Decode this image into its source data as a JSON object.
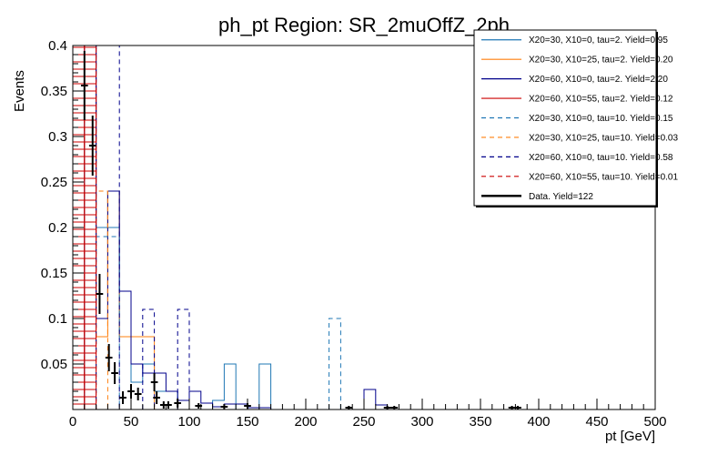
{
  "chart_data": {
    "type": "histogram",
    "title": "ph_pt Region: SR_2muOffZ_2ph",
    "xlabel": "pt [GeV]",
    "ylabel": "Events",
    "xlim": [
      0,
      500
    ],
    "ylim": [
      0,
      0.4
    ],
    "xticks": [
      "0",
      "50",
      "100",
      "150",
      "200",
      "250",
      "300",
      "350",
      "400",
      "450",
      "500"
    ],
    "yticks": [
      "0.05",
      "0.1",
      "0.15",
      "0.2",
      "0.25",
      "0.3",
      "0.35",
      "0.4"
    ],
    "grid": false,
    "legend_position": "top-right",
    "bin_width": 10,
    "series": [
      {
        "name": "X20=30, X10=0, tau=2. Yield=0.95",
        "color": "#1f77b4",
        "style": "solid",
        "width": 1,
        "bins": [
          [
            10,
            0.4
          ],
          [
            20,
            0.2
          ],
          [
            30,
            0.2
          ],
          [
            40,
            0.08
          ],
          [
            50,
            0.03
          ],
          [
            60,
            0.05
          ],
          [
            70,
            0.02
          ],
          [
            80,
            0.02
          ],
          [
            90,
            0.01
          ],
          [
            120,
            0.01
          ],
          [
            130,
            0.05
          ],
          [
            160,
            0.05
          ],
          [
            170,
            0.0
          ]
        ]
      },
      {
        "name": "X20=30, X10=25, tau=2. Yield=0.20",
        "color": "#ff7f0e",
        "style": "solid",
        "width": 1,
        "bins": [
          [
            10,
            0.35
          ],
          [
            20,
            0.08
          ],
          [
            30,
            0.24
          ],
          [
            40,
            0.08
          ],
          [
            50,
            0.08
          ],
          [
            60,
            0.08
          ],
          [
            70,
            0.0
          ]
        ]
      },
      {
        "name": "X20=60, X10=0, tau=2. Yield=2.20",
        "color": "#00008b",
        "style": "solid",
        "width": 1,
        "bins": [
          [
            10,
            0.4
          ],
          [
            20,
            0.1
          ],
          [
            30,
            0.24
          ],
          [
            40,
            0.13
          ],
          [
            50,
            0.05
          ],
          [
            60,
            0.04
          ],
          [
            70,
            0.04
          ],
          [
            80,
            0.02
          ],
          [
            90,
            0.01
          ],
          [
            100,
            0.02
          ],
          [
            110,
            0.007
          ],
          [
            120,
            0.003
          ],
          [
            130,
            0.006
          ],
          [
            140,
            0.006
          ],
          [
            150,
            0.002
          ],
          [
            160,
            0.002
          ],
          [
            250,
            0.022
          ],
          [
            260,
            0.005
          ],
          [
            270,
            0.0
          ]
        ]
      },
      {
        "name": "X20=60, X10=55, tau=2. Yield=0.12",
        "color": "#cc0000",
        "style": "solid",
        "width": 1,
        "bins": [
          [
            10,
            0.4
          ],
          [
            20,
            0.0
          ]
        ]
      },
      {
        "name": "X20=30, X10=0, tau=10. Yield=0.15",
        "color": "#1f77b4",
        "style": "dashed",
        "width": 1,
        "bins": [
          [
            20,
            0.19
          ],
          [
            30,
            0.19
          ],
          [
            40,
            0.0
          ],
          [
            220,
            0.1
          ],
          [
            230,
            0.0
          ]
        ]
      },
      {
        "name": "X20=30, X10=25, tau=10. Yield=0.03",
        "color": "#ff7f0e",
        "style": "dashed",
        "width": 1,
        "bins": [
          [
            20,
            0.24
          ],
          [
            30,
            0.0
          ]
        ]
      },
      {
        "name": "X20=60, X10=0, tau=10. Yield=0.58",
        "color": "#00008b",
        "style": "dashed",
        "width": 1,
        "bins": [
          [
            20,
            0.4
          ],
          [
            30,
            0.4
          ],
          [
            40,
            0.0
          ],
          [
            60,
            0.11
          ],
          [
            70,
            0.0
          ],
          [
            90,
            0.11
          ],
          [
            100,
            0.0
          ]
        ]
      },
      {
        "name": "X20=60, X10=55, tau=10. Yield=0.01",
        "color": "#cc0000",
        "style": "dashed",
        "width": 1,
        "bins": [
          [
            10,
            0.4
          ],
          [
            20,
            0.0
          ]
        ]
      }
    ],
    "data": {
      "name": "Data. Yield=122",
      "color": "#000000",
      "points": [
        {
          "x": 10,
          "y": 0.356,
          "err": 0.038
        },
        {
          "x": 17,
          "y": 0.29,
          "err": 0.033
        },
        {
          "x": 23,
          "y": 0.127,
          "err": 0.022
        },
        {
          "x": 31,
          "y": 0.057,
          "err": 0.015
        },
        {
          "x": 36,
          "y": 0.04,
          "err": 0.012
        },
        {
          "x": 43,
          "y": 0.013,
          "err": 0.007
        },
        {
          "x": 50,
          "y": 0.02,
          "err": 0.008
        },
        {
          "x": 56,
          "y": 0.017,
          "err": 0.007
        },
        {
          "x": 70,
          "y": 0.03,
          "err": 0.01
        },
        {
          "x": 72,
          "y": 0.013,
          "err": 0.007
        },
        {
          "x": 78,
          "y": 0.005,
          "err": 0.004
        },
        {
          "x": 82,
          "y": 0.005,
          "err": 0.004
        },
        {
          "x": 90,
          "y": 0.007,
          "err": 0.005
        },
        {
          "x": 108,
          "y": 0.004,
          "err": 0.003
        },
        {
          "x": 130,
          "y": 0.003,
          "err": 0.003
        },
        {
          "x": 150,
          "y": 0.004,
          "err": 0.003
        },
        {
          "x": 237,
          "y": 0.002,
          "err": 0.002
        },
        {
          "x": 270,
          "y": 0.002,
          "err": 0.002
        },
        {
          "x": 276,
          "y": 0.002,
          "err": 0.002
        },
        {
          "x": 377,
          "y": 0.002,
          "err": 0.002
        },
        {
          "x": 382,
          "y": 0.002,
          "err": 0.002
        }
      ]
    }
  }
}
